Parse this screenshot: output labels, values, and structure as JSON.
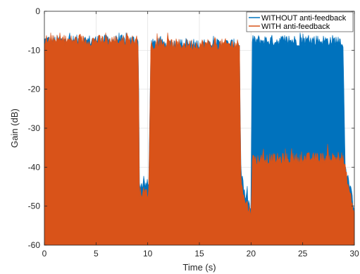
{
  "chart_data": {
    "type": "area",
    "title": "",
    "xlabel": "Time (s)",
    "ylabel": "Gain (dB)",
    "xlim": [
      0,
      30
    ],
    "ylim": [
      -60,
      0
    ],
    "xticks": [
      0,
      5,
      10,
      15,
      20,
      25,
      30
    ],
    "yticks": [
      0,
      -10,
      -20,
      -30,
      -40,
      -50,
      -60
    ],
    "grid": true,
    "legend_position": "top-right",
    "colors": {
      "without": "#0072BD",
      "with": "#D95319"
    },
    "series": [
      {
        "name": "WITHOUT anti-feedback",
        "description_units": "upper envelope of gain (dB) vs time (s); signal spans down to -60 dB",
        "x": [
          0,
          9.1,
          9.2,
          9.9,
          10.1,
          10.3,
          18.9,
          19.0,
          19.3,
          19.8,
          20.0,
          20.1,
          28.9,
          29.1,
          29.5,
          30.0
        ],
        "upper": [
          -7.5,
          -7.5,
          -44.5,
          -44.5,
          -44.5,
          -8.5,
          -8.5,
          -39.5,
          -46.5,
          -49.5,
          -51.0,
          -7.5,
          -7.5,
          -38.5,
          -44.5,
          -50.5
        ],
        "lower": [
          -60,
          -60,
          -60,
          -60,
          -60,
          -60,
          -60,
          -60,
          -60,
          -60,
          -60,
          -60,
          -60,
          -60,
          -60,
          -60
        ]
      },
      {
        "name": "WITH anti-feedback",
        "description_units": "upper envelope of gain (dB) vs time (s); signal spans down to -60 dB",
        "x": [
          0,
          9.1,
          9.2,
          9.9,
          10.1,
          10.3,
          18.9,
          19.0,
          19.3,
          19.8,
          20.0,
          20.1,
          28.9,
          29.1,
          29.5,
          30.0
        ],
        "upper": [
          -7.5,
          -7.5,
          -46.5,
          -46.5,
          -46.5,
          -8.5,
          -8.5,
          -41.0,
          -48.0,
          -50.5,
          -52.0,
          -38.0,
          -37.5,
          -40.5,
          -46.0,
          -52.0
        ],
        "lower": [
          -60,
          -60,
          -60,
          -60,
          -60,
          -60,
          -60,
          -60,
          -60,
          -60,
          -60,
          -60,
          -60,
          -60,
          -60,
          -60
        ]
      }
    ]
  }
}
